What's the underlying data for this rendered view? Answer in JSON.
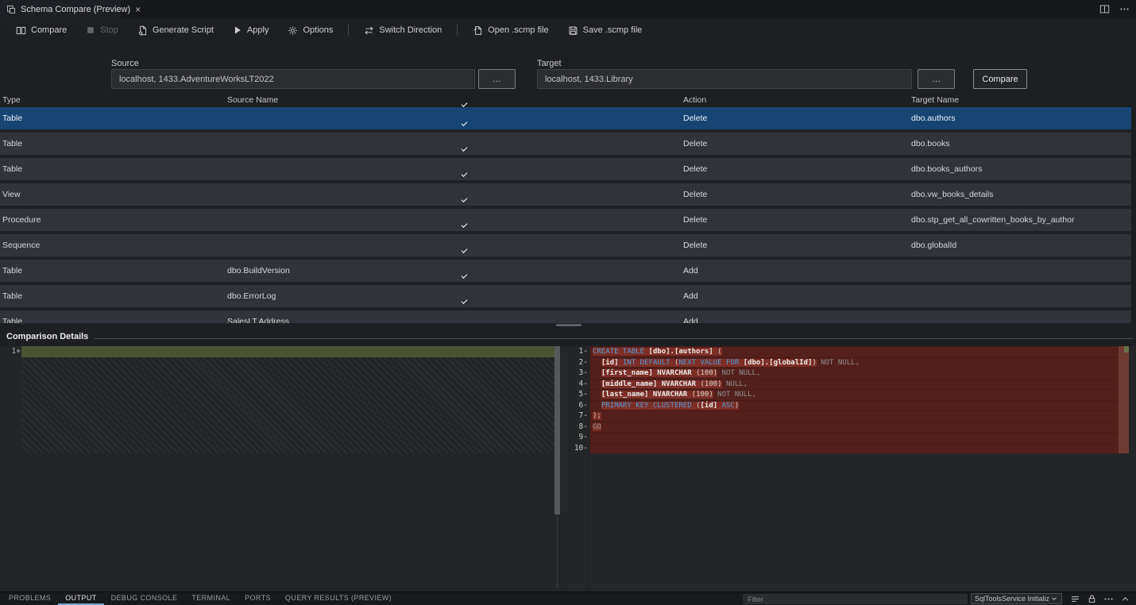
{
  "colors": {
    "accent_blue": "#3b76c9",
    "selection_row": "#164573",
    "diff_added_line": "#4b5233",
    "diff_deleted_line": "#541f1c",
    "diff_deleted_char": "#7d2e27",
    "keyword": "#569cd6"
  },
  "tab": {
    "title": "Schema Compare (Preview)",
    "close_glyph": "×"
  },
  "tabbar_action_icons": [
    "split-editor-icon",
    "more-actions-icon"
  ],
  "toolbar": {
    "items": [
      {
        "label": "Compare",
        "icon": "compare-icon",
        "enabled": true,
        "separator_after": false
      },
      {
        "label": "Stop",
        "icon": "stop-icon",
        "enabled": false,
        "separator_after": false
      },
      {
        "label": "Generate Script",
        "icon": "generate-script-icon",
        "enabled": true,
        "separator_after": false
      },
      {
        "label": "Apply",
        "icon": "apply-icon",
        "enabled": true,
        "separator_after": false
      },
      {
        "label": "Options",
        "icon": "options-icon",
        "enabled": true,
        "separator_after": true
      },
      {
        "label": "Switch Direction",
        "icon": "switch-direction-icon",
        "enabled": true,
        "separator_after": true
      },
      {
        "label": "Open .scmp file",
        "icon": "open-file-icon",
        "enabled": true,
        "separator_after": false
      },
      {
        "label": "Save .scmp file",
        "icon": "save-file-icon",
        "enabled": true,
        "separator_after": false
      }
    ]
  },
  "connection": {
    "source_label": "Source",
    "source_value": "localhost, 1433.AdventureWorksLT2022",
    "target_label": "Target",
    "target_value": "localhost, 1433.Library",
    "browse_label": "…",
    "compare_button_label": "Compare"
  },
  "grid": {
    "headers": {
      "type": "Type",
      "source_name": "Source Name",
      "action": "Action",
      "target_name": "Target Name"
    },
    "header_checkbox_checked": true,
    "rows": [
      {
        "type": "Table",
        "source_name": "",
        "checked": true,
        "action": "Delete",
        "target_name": "dbo.authors",
        "selected": true
      },
      {
        "type": "Table",
        "source_name": "",
        "checked": true,
        "action": "Delete",
        "target_name": "dbo.books",
        "selected": false
      },
      {
        "type": "Table",
        "source_name": "",
        "checked": true,
        "action": "Delete",
        "target_name": "dbo.books_authors",
        "selected": false
      },
      {
        "type": "View",
        "source_name": "",
        "checked": true,
        "action": "Delete",
        "target_name": "dbo.vw_books_details",
        "selected": false
      },
      {
        "type": "Procedure",
        "source_name": "",
        "checked": true,
        "action": "Delete",
        "target_name": "dbo.stp_get_all_cowritten_books_by_author",
        "selected": false
      },
      {
        "type": "Sequence",
        "source_name": "",
        "checked": true,
        "action": "Delete",
        "target_name": "dbo.globalId",
        "selected": false
      },
      {
        "type": "Table",
        "source_name": "dbo.BuildVersion",
        "checked": true,
        "action": "Add",
        "target_name": "",
        "selected": false
      },
      {
        "type": "Table",
        "source_name": "dbo.ErrorLog",
        "checked": true,
        "action": "Add",
        "target_name": "",
        "selected": false
      },
      {
        "type": "Table",
        "source_name": "SalesLT.Address",
        "checked": true,
        "action": "Add",
        "target_name": "",
        "selected": false
      }
    ]
  },
  "details": {
    "title": "Comparison Details",
    "left_lines": [
      {
        "n": "1",
        "sign": "+"
      }
    ],
    "right_lines": [
      {
        "n": "1",
        "tokens": [
          {
            "t": "CREATE TABLE ",
            "c": "kw",
            "h": 1
          },
          {
            "t": "[dbo].[authors] ",
            "c": "id",
            "h": 1
          },
          {
            "t": "(",
            "c": "pn",
            "h": 1
          }
        ]
      },
      {
        "n": "2",
        "tokens": [
          {
            "t": "  ",
            "c": "pn",
            "h": 0
          },
          {
            "t": "[id] ",
            "c": "id",
            "h": 1
          },
          {
            "t": "INT DEFAULT ",
            "c": "kw",
            "h": 1
          },
          {
            "t": "(",
            "c": "pn",
            "h": 1
          },
          {
            "t": "NEXT VALUE FOR ",
            "c": "kw",
            "h": 1
          },
          {
            "t": "[dbo].[globalId]",
            "c": "id",
            "h": 1
          },
          {
            "t": ")",
            "c": "pn",
            "h": 1
          },
          {
            "t": " NOT NULL,",
            "c": "dim",
            "h": 0
          }
        ]
      },
      {
        "n": "3",
        "tokens": [
          {
            "t": "  ",
            "c": "pn",
            "h": 0
          },
          {
            "t": "[first_name] ",
            "c": "id",
            "h": 1
          },
          {
            "t": "NVARCHAR ",
            "c": "id",
            "h": 1
          },
          {
            "t": "(100)",
            "c": "pn",
            "h": 1
          },
          {
            "t": " NOT NULL,",
            "c": "dim",
            "h": 0
          }
        ]
      },
      {
        "n": "4",
        "tokens": [
          {
            "t": "  ",
            "c": "pn",
            "h": 0
          },
          {
            "t": "[middle_name] ",
            "c": "id",
            "h": 1
          },
          {
            "t": "NVARCHAR ",
            "c": "id",
            "h": 1
          },
          {
            "t": "(100)",
            "c": "pn",
            "h": 1
          },
          {
            "t": " NULL,",
            "c": "dim",
            "h": 0
          }
        ]
      },
      {
        "n": "5",
        "tokens": [
          {
            "t": "  ",
            "c": "pn",
            "h": 0
          },
          {
            "t": "[last_name] ",
            "c": "id",
            "h": 1
          },
          {
            "t": "NVARCHAR ",
            "c": "id",
            "h": 1
          },
          {
            "t": "(100)",
            "c": "pn",
            "h": 1
          },
          {
            "t": " NOT NULL,",
            "c": "dim",
            "h": 0
          }
        ]
      },
      {
        "n": "6",
        "tokens": [
          {
            "t": "  ",
            "c": "pn",
            "h": 0
          },
          {
            "t": "PRIMARY KEY CLUSTERED ",
            "c": "kw",
            "h": 1
          },
          {
            "t": "(",
            "c": "pn",
            "h": 1
          },
          {
            "t": "[id] ",
            "c": "id",
            "h": 1
          },
          {
            "t": "ASC",
            "c": "kw",
            "h": 1
          },
          {
            "t": ")",
            "c": "pn",
            "h": 1
          }
        ]
      },
      {
        "n": "7",
        "tokens": [
          {
            "t": ");",
            "c": "pn",
            "h": 1
          }
        ]
      },
      {
        "n": "8",
        "tokens": [
          {
            "t": "GO",
            "c": "dim",
            "h": 1
          }
        ]
      },
      {
        "n": "9",
        "tokens": []
      },
      {
        "n": "10",
        "tokens": []
      }
    ]
  },
  "bottom": {
    "tabs": [
      "PROBLEMS",
      "OUTPUT",
      "DEBUG CONSOLE",
      "TERMINAL",
      "PORTS",
      "QUERY RESULTS (PREVIEW)"
    ],
    "active_tab": "OUTPUT",
    "filter_placeholder": "Filter",
    "channel": "SqlToolsService Initializ",
    "icons": [
      "clear-output-icon",
      "scroll-lock-icon",
      "more-actions-icon",
      "maximize-panel-icon",
      "close-panel-icon"
    ]
  }
}
